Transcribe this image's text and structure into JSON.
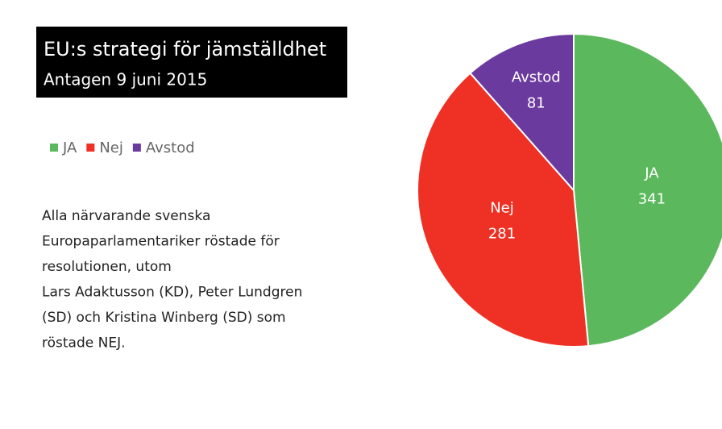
{
  "chart_data": {
    "type": "pie",
    "title": "EU:s strategi för jämställdhet",
    "subtitle": "Antagen 9 juni 2015",
    "categories": [
      "JA",
      "Nej",
      "Avstod"
    ],
    "values": [
      341,
      281,
      81
    ],
    "colors": [
      "#5cb85c",
      "#ee3124",
      "#6b3a9e"
    ],
    "legend": "top-left",
    "annotations": [
      "Alla närvarande svenska",
      "Europaparlamentariker röstade för",
      "resolutionen, utom",
      "Lars Adaktusson (KD), Peter Lundgren",
      "(SD) och Kristina Winberg (SD) som",
      "röstade NEJ."
    ]
  }
}
